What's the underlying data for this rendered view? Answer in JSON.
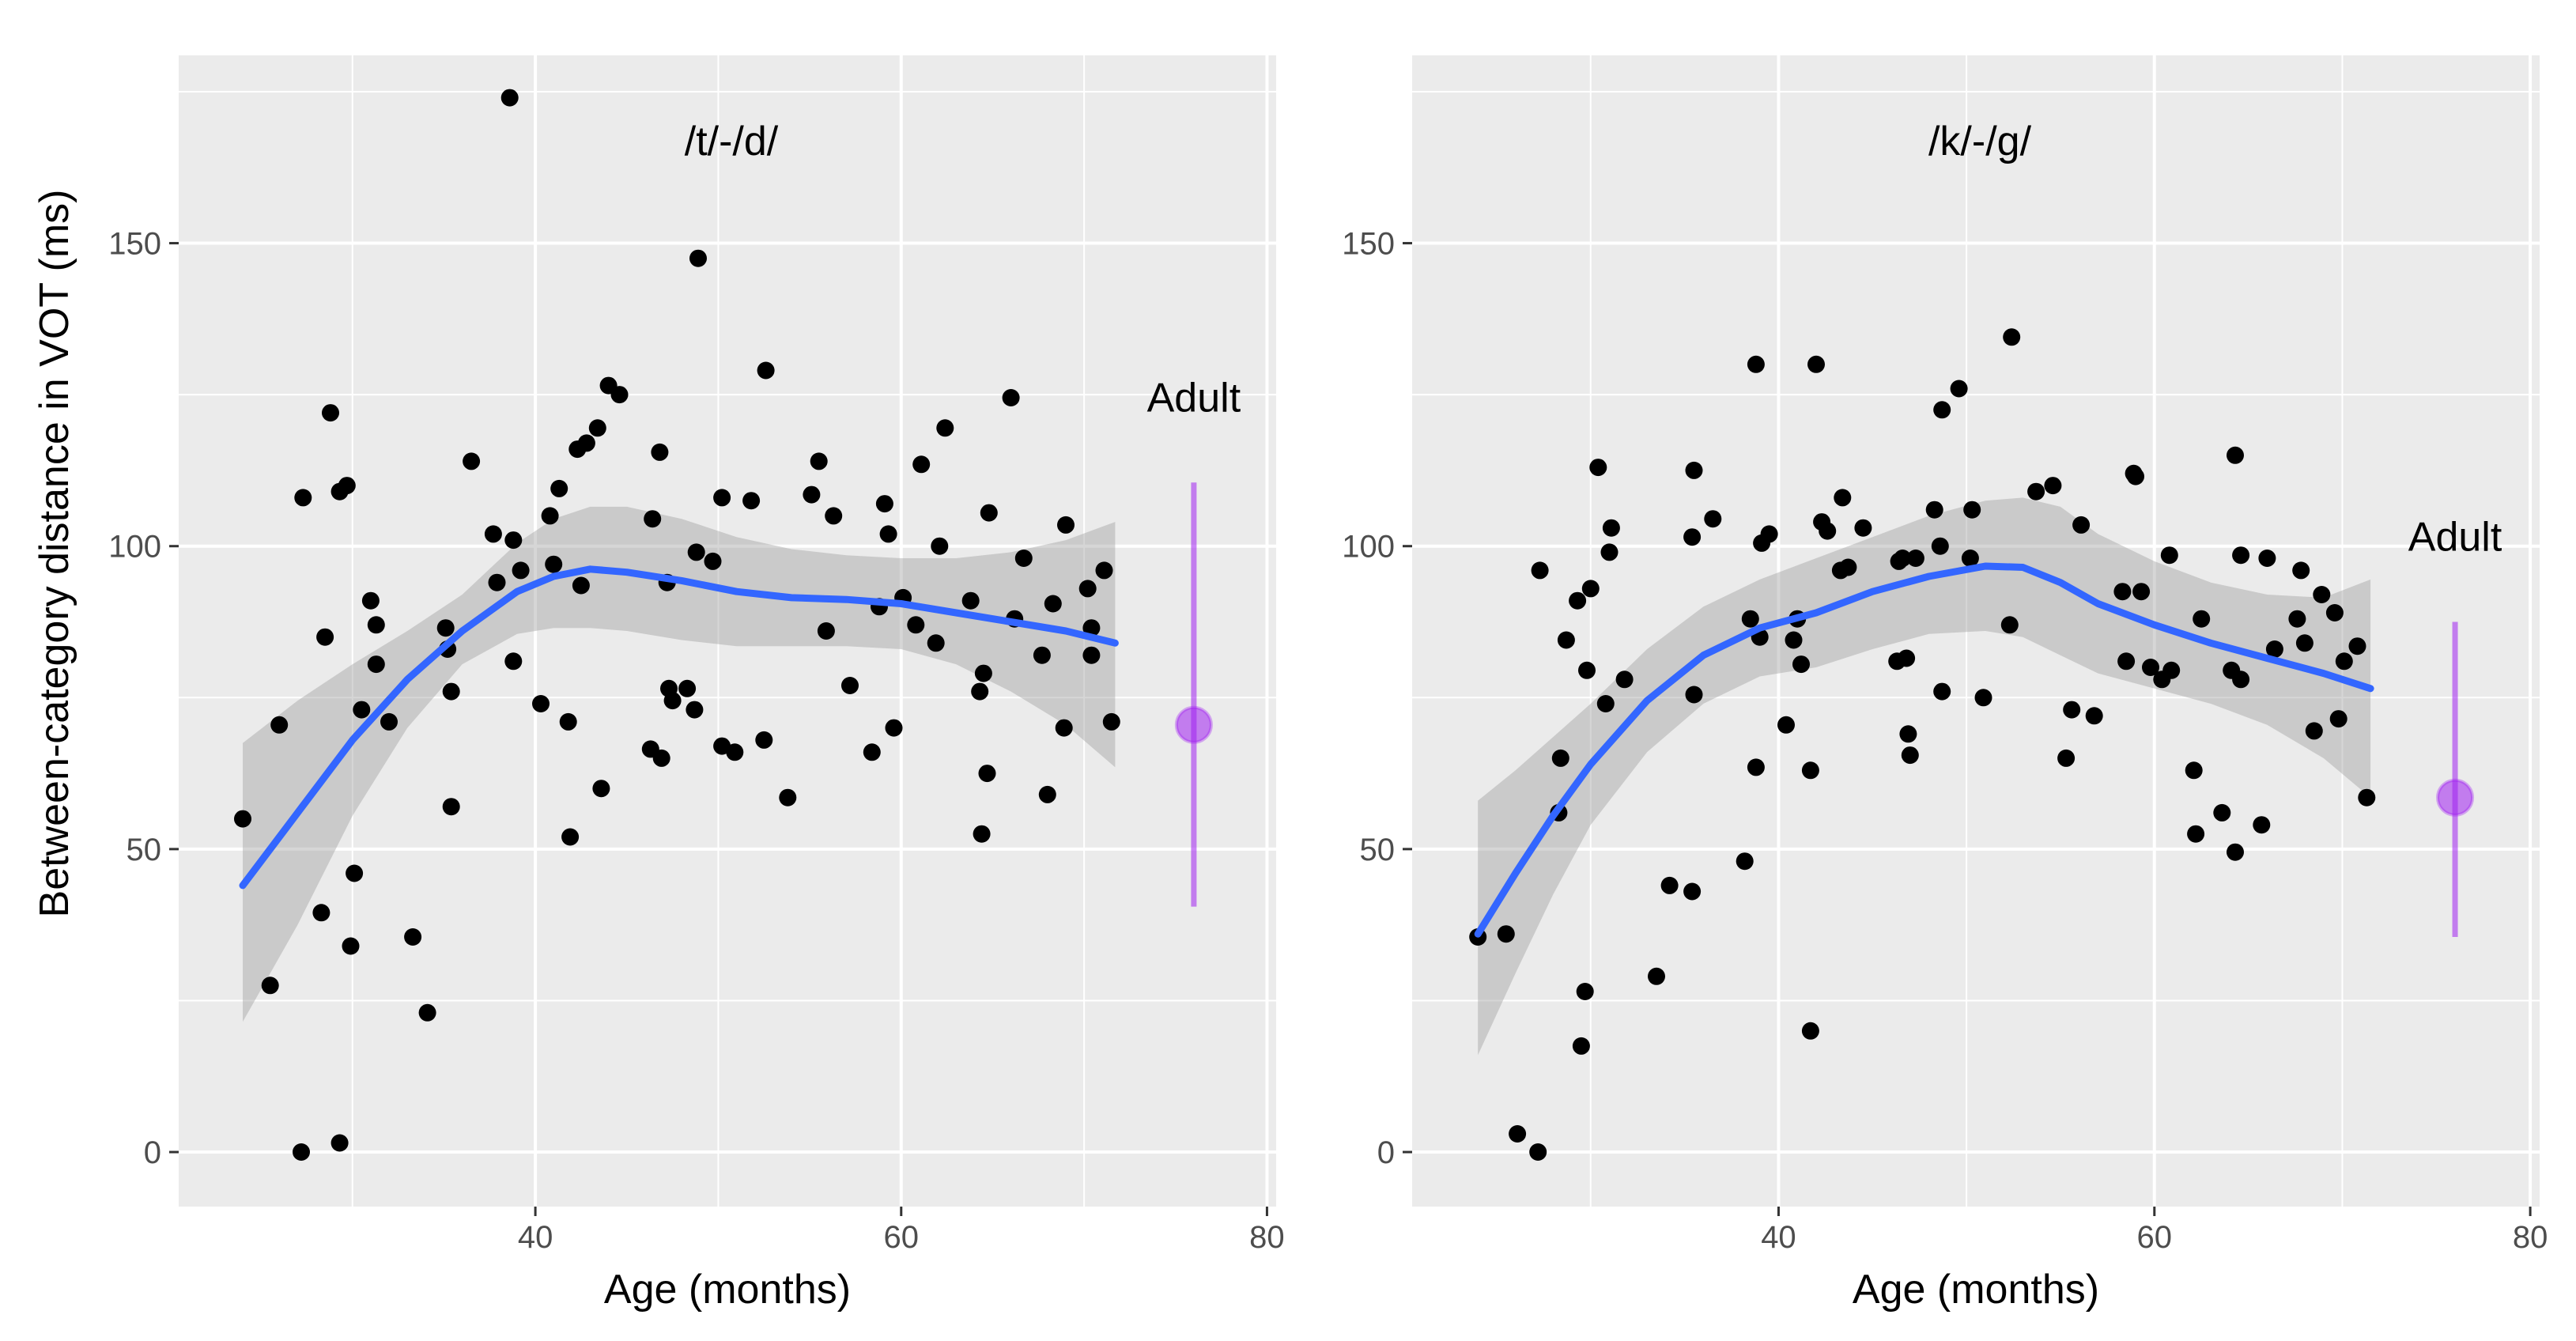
{
  "figure": {
    "ylabel": "Between-category distance in VOT (ms)",
    "colors": {
      "panel_bg": "#ebebeb",
      "grid": "#ffffff",
      "points": "#000000",
      "smooth": "#3366ff",
      "ribbon": "#999999",
      "adult": "#a020f0"
    }
  },
  "chart_data": [
    {
      "type": "scatter",
      "title": "/t/-/d/",
      "xlabel": "Age  (months)",
      "ylabel": "Between-category distance in VOT (ms)",
      "xlim": [
        20.5,
        80.5
      ],
      "ylim": [
        -9,
        181
      ],
      "xticks": [
        40,
        60,
        80
      ],
      "yticks": [
        0,
        50,
        100,
        150
      ],
      "x_tick_labels": [
        "40",
        "60",
        "80"
      ],
      "y_tick_labels": [
        "0",
        "50",
        "100",
        "150"
      ],
      "points": [
        [
          24,
          55
        ],
        [
          25.5,
          27.5
        ],
        [
          26,
          70.5
        ],
        [
          27.2,
          0
        ],
        [
          27.3,
          108
        ],
        [
          28.3,
          39.5
        ],
        [
          28.5,
          85
        ],
        [
          28.8,
          122
        ],
        [
          29.3,
          1.5
        ],
        [
          29.3,
          109
        ],
        [
          29.7,
          110
        ],
        [
          29.9,
          34
        ],
        [
          30.1,
          46
        ],
        [
          30.5,
          73
        ],
        [
          31,
          91
        ],
        [
          31.3,
          87
        ],
        [
          31.3,
          80.5
        ],
        [
          32,
          71
        ],
        [
          33.3,
          35.5
        ],
        [
          34.1,
          23
        ],
        [
          35.1,
          86.5
        ],
        [
          35.2,
          83
        ],
        [
          35.4,
          57
        ],
        [
          35.4,
          76
        ],
        [
          36.5,
          114
        ],
        [
          37.7,
          102
        ],
        [
          37.9,
          94
        ],
        [
          38.6,
          174
        ],
        [
          38.8,
          81
        ],
        [
          38.8,
          101
        ],
        [
          39.2,
          96
        ],
        [
          40.3,
          74
        ],
        [
          40.8,
          105
        ],
        [
          41,
          97
        ],
        [
          41.3,
          109.5
        ],
        [
          41.8,
          71
        ],
        [
          41.9,
          52
        ],
        [
          42.3,
          116
        ],
        [
          42.5,
          93.5
        ],
        [
          42.8,
          117
        ],
        [
          43.4,
          119.5
        ],
        [
          43.6,
          60
        ],
        [
          44,
          126.5
        ],
        [
          44.6,
          125
        ],
        [
          46.3,
          66.5
        ],
        [
          46.4,
          104.5
        ],
        [
          46.8,
          115.5
        ],
        [
          46.9,
          65
        ],
        [
          47.2,
          94
        ],
        [
          47.3,
          76.5
        ],
        [
          47.5,
          74.5
        ],
        [
          48.3,
          76.5
        ],
        [
          48.7,
          73
        ],
        [
          48.8,
          99
        ],
        [
          48.9,
          147.5
        ],
        [
          49.7,
          97.5
        ],
        [
          50.2,
          108
        ],
        [
          50.2,
          67
        ],
        [
          50.9,
          66
        ],
        [
          51.8,
          107.5
        ],
        [
          52.5,
          68
        ],
        [
          52.6,
          129
        ],
        [
          53.8,
          58.5
        ],
        [
          55.1,
          108.5
        ],
        [
          55.5,
          114
        ],
        [
          55.9,
          86
        ],
        [
          56.3,
          105
        ],
        [
          57.2,
          77
        ],
        [
          58.4,
          66
        ],
        [
          58.8,
          90
        ],
        [
          59.1,
          107
        ],
        [
          59.3,
          102
        ],
        [
          59.6,
          70
        ],
        [
          60.1,
          91.5
        ],
        [
          60.8,
          87
        ],
        [
          61.1,
          113.5
        ],
        [
          61.9,
          84
        ],
        [
          62.1,
          100
        ],
        [
          62.4,
          119.5
        ],
        [
          63.8,
          91
        ],
        [
          64.3,
          76
        ],
        [
          64.4,
          52.5
        ],
        [
          64.5,
          79
        ],
        [
          64.7,
          62.5
        ],
        [
          64.8,
          105.5
        ],
        [
          66,
          124.5
        ],
        [
          66.2,
          88
        ],
        [
          66.7,
          98
        ],
        [
          67.7,
          82
        ],
        [
          68,
          59
        ],
        [
          68.3,
          90.5
        ],
        [
          68.9,
          70
        ],
        [
          69,
          103.5
        ],
        [
          70.2,
          93
        ],
        [
          70.4,
          86.5
        ],
        [
          70.4,
          82
        ],
        [
          71.1,
          96
        ],
        [
          71.5,
          71
        ]
      ],
      "smooth": [
        [
          24,
          44
        ],
        [
          27,
          56
        ],
        [
          30,
          68
        ],
        [
          33,
          78
        ],
        [
          36,
          86
        ],
        [
          39,
          92.5
        ],
        [
          41,
          95
        ],
        [
          43,
          96.2
        ],
        [
          45,
          95.7
        ],
        [
          48,
          94.3
        ],
        [
          51,
          92.5
        ],
        [
          54,
          91.5
        ],
        [
          57,
          91.2
        ],
        [
          60,
          90.5
        ],
        [
          63,
          89
        ],
        [
          66,
          87.5
        ],
        [
          69,
          86
        ],
        [
          71.7,
          84
        ]
      ],
      "ribbon_upper": [
        [
          24,
          67.5
        ],
        [
          27,
          74.5
        ],
        [
          30,
          80.5
        ],
        [
          33,
          86
        ],
        [
          36,
          92
        ],
        [
          39,
          100.5
        ],
        [
          41,
          104.5
        ],
        [
          43,
          106.5
        ],
        [
          45,
          106.5
        ],
        [
          48,
          104.5
        ],
        [
          51,
          101.5
        ],
        [
          54,
          99.5
        ],
        [
          57,
          98.5
        ],
        [
          60,
          98
        ],
        [
          63,
          98
        ],
        [
          66,
          99
        ],
        [
          69,
          101
        ],
        [
          71.7,
          104
        ]
      ],
      "ribbon_lower": [
        [
          24,
          21.5
        ],
        [
          27,
          37.5
        ],
        [
          30,
          55.5
        ],
        [
          33,
          70
        ],
        [
          36,
          80.5
        ],
        [
          39,
          85.5
        ],
        [
          41,
          86.5
        ],
        [
          43,
          86.5
        ],
        [
          45,
          86
        ],
        [
          48,
          84.5
        ],
        [
          51,
          83.5
        ],
        [
          54,
          83.5
        ],
        [
          57,
          83.5
        ],
        [
          60,
          83
        ],
        [
          63,
          80.5
        ],
        [
          66,
          76
        ],
        [
          69,
          70.5
        ],
        [
          71.7,
          63.5
        ]
      ],
      "adult": {
        "label": "Adult",
        "x": 76,
        "y": 70.5,
        "ymin": 40.5,
        "ymax": 110.5
      }
    },
    {
      "type": "scatter",
      "title": "/k/-/g/",
      "xlabel": "Age (months)",
      "ylabel": "Between-category distance in VOT (ms)",
      "xlim": [
        20.5,
        80.5
      ],
      "ylim": [
        -9,
        181
      ],
      "xticks": [
        40,
        60,
        80
      ],
      "yticks": [
        0,
        50,
        100,
        150
      ],
      "x_tick_labels": [
        "40",
        "60",
        "80"
      ],
      "y_tick_labels": [
        "0",
        "50",
        "100",
        "150"
      ],
      "points": [
        [
          24,
          35.5
        ],
        [
          25.5,
          36
        ],
        [
          26.1,
          3
        ],
        [
          27.2,
          0
        ],
        [
          27.3,
          96
        ],
        [
          28.3,
          56
        ],
        [
          28.4,
          65
        ],
        [
          28.7,
          84.5
        ],
        [
          29.3,
          91
        ],
        [
          29.5,
          17.5
        ],
        [
          29.7,
          26.5
        ],
        [
          29.8,
          79.5
        ],
        [
          30,
          93
        ],
        [
          30.4,
          113
        ],
        [
          30.8,
          74
        ],
        [
          31,
          99
        ],
        [
          31.1,
          103
        ],
        [
          31.8,
          78
        ],
        [
          33.5,
          29
        ],
        [
          34.2,
          44
        ],
        [
          35.4,
          43
        ],
        [
          35.4,
          101.5
        ],
        [
          35.5,
          112.5
        ],
        [
          35.5,
          75.5
        ],
        [
          36.5,
          104.5
        ],
        [
          38.2,
          48
        ],
        [
          38.5,
          88
        ],
        [
          38.8,
          130
        ],
        [
          38.8,
          63.5
        ],
        [
          39.1,
          100.5
        ],
        [
          39.5,
          102
        ],
        [
          39,
          85
        ],
        [
          40.4,
          70.5
        ],
        [
          40.8,
          84.5
        ],
        [
          41,
          88
        ],
        [
          41.2,
          80.5
        ],
        [
          41.7,
          63
        ],
        [
          41.7,
          20
        ],
        [
          42,
          130
        ],
        [
          42.3,
          104
        ],
        [
          42.6,
          102.5
        ],
        [
          43.3,
          96
        ],
        [
          43.4,
          108
        ],
        [
          43.7,
          96.5
        ],
        [
          44.5,
          103
        ],
        [
          46.3,
          81
        ],
        [
          46.4,
          97.5
        ],
        [
          46.6,
          98
        ],
        [
          46.8,
          81.5
        ],
        [
          46.9,
          69
        ],
        [
          47,
          65.5
        ],
        [
          47.3,
          98
        ],
        [
          48.3,
          106
        ],
        [
          48.6,
          100
        ],
        [
          48.7,
          76
        ],
        [
          48.7,
          122.5
        ],
        [
          49.6,
          126
        ],
        [
          50.2,
          98
        ],
        [
          50.3,
          106
        ],
        [
          50.9,
          75
        ],
        [
          52.3,
          87
        ],
        [
          52.4,
          134.5
        ],
        [
          53.7,
          109
        ],
        [
          54.6,
          110
        ],
        [
          55.3,
          65
        ],
        [
          55.6,
          73
        ],
        [
          56.1,
          103.5
        ],
        [
          56.8,
          72
        ],
        [
          58.3,
          92.5
        ],
        [
          58.5,
          81
        ],
        [
          58.9,
          112
        ],
        [
          59,
          111.5
        ],
        [
          59.3,
          92.5
        ],
        [
          59.8,
          80
        ],
        [
          60.4,
          78
        ],
        [
          60.8,
          98.5
        ],
        [
          60.9,
          79.5
        ],
        [
          62.1,
          63
        ],
        [
          62.2,
          52.5
        ],
        [
          62.5,
          88
        ],
        [
          63.6,
          56
        ],
        [
          64.1,
          79.5
        ],
        [
          64.3,
          115
        ],
        [
          64.3,
          49.5
        ],
        [
          64.6,
          98.5
        ],
        [
          64.6,
          78
        ],
        [
          65.7,
          54
        ],
        [
          66,
          98
        ],
        [
          66.4,
          83
        ],
        [
          67.6,
          88
        ],
        [
          67.8,
          96
        ],
        [
          68,
          84
        ],
        [
          68.5,
          69.5
        ],
        [
          68.9,
          92
        ],
        [
          69.6,
          89
        ],
        [
          69.8,
          71.5
        ],
        [
          70.1,
          81
        ],
        [
          70.8,
          83.5
        ],
        [
          71.3,
          58.5
        ]
      ],
      "smooth": [
        [
          24,
          36
        ],
        [
          26,
          46
        ],
        [
          28,
          55.5
        ],
        [
          30,
          64
        ],
        [
          33,
          74.5
        ],
        [
          36,
          82
        ],
        [
          39,
          86.5
        ],
        [
          42,
          89
        ],
        [
          45,
          92.5
        ],
        [
          48,
          95
        ],
        [
          51,
          96.7
        ],
        [
          53,
          96.5
        ],
        [
          55,
          94
        ],
        [
          57,
          90.5
        ],
        [
          60,
          87
        ],
        [
          63,
          84
        ],
        [
          66,
          81.5
        ],
        [
          69,
          79
        ],
        [
          71.5,
          76.5
        ]
      ],
      "ribbon_upper": [
        [
          24,
          58
        ],
        [
          26,
          63
        ],
        [
          28,
          68.5
        ],
        [
          30,
          74
        ],
        [
          33,
          83
        ],
        [
          36,
          90
        ],
        [
          39,
          94.5
        ],
        [
          42,
          98
        ],
        [
          45,
          101.5
        ],
        [
          48,
          105
        ],
        [
          51,
          107.5
        ],
        [
          53,
          108
        ],
        [
          55,
          106.5
        ],
        [
          57,
          102
        ],
        [
          60,
          97.5
        ],
        [
          63,
          94
        ],
        [
          66,
          92
        ],
        [
          69,
          91.5
        ],
        [
          71.5,
          94.5
        ]
      ],
      "ribbon_lower": [
        [
          24,
          16
        ],
        [
          26,
          29.5
        ],
        [
          28,
          42.5
        ],
        [
          30,
          54
        ],
        [
          33,
          66
        ],
        [
          36,
          74
        ],
        [
          39,
          78.5
        ],
        [
          42,
          80
        ],
        [
          45,
          83
        ],
        [
          48,
          85.5
        ],
        [
          51,
          86
        ],
        [
          53,
          85
        ],
        [
          55,
          82
        ],
        [
          57,
          79
        ],
        [
          60,
          76.5
        ],
        [
          63,
          74
        ],
        [
          66,
          70.5
        ],
        [
          69,
          65
        ],
        [
          71.5,
          58.5
        ]
      ],
      "adult": {
        "label": "Adult",
        "x": 76,
        "y": 58.5,
        "ymin": 35.5,
        "ymax": 87.5
      }
    }
  ]
}
